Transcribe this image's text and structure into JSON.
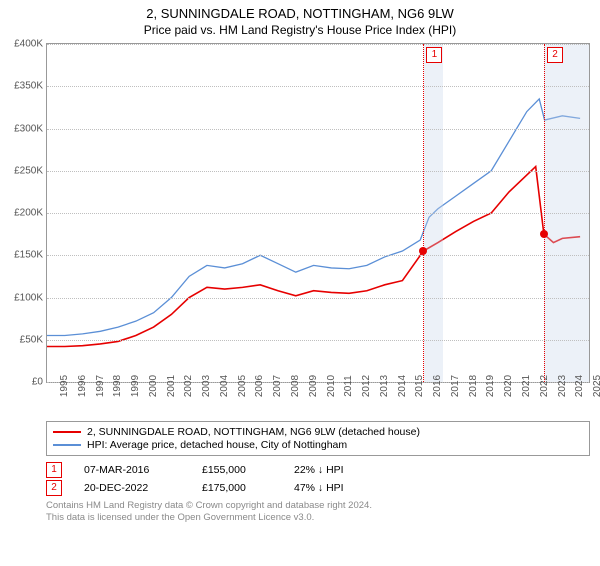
{
  "title": "2, SUNNINGDALE ROAD, NOTTINGHAM, NG6 9LW",
  "subtitle": "Price paid vs. HM Land Registry's House Price Index (HPI)",
  "chart": {
    "type": "line",
    "background_color": "#ffffff",
    "grid_color": "#bfbfbf",
    "border_color": "#999999",
    "x_years": [
      1995,
      1996,
      1997,
      1998,
      1999,
      2000,
      2001,
      2002,
      2003,
      2004,
      2005,
      2006,
      2007,
      2008,
      2009,
      2010,
      2011,
      2012,
      2013,
      2014,
      2015,
      2016,
      2017,
      2018,
      2019,
      2020,
      2021,
      2022,
      2023,
      2024,
      2025
    ],
    "xlim": [
      1995,
      2025.5
    ],
    "ylim": [
      0,
      400000
    ],
    "ytick_step": 50000,
    "y_tick_labels": [
      "£0",
      "£50K",
      "£100K",
      "£150K",
      "£200K",
      "£250K",
      "£300K",
      "£350K",
      "£400K"
    ],
    "label_fontsize": 10,
    "shaded_ranges": [
      {
        "from": 2016.2,
        "to": 2017.3
      },
      {
        "from": 2022.97,
        "to": 2025.5
      }
    ],
    "series": [
      {
        "key": "price_paid",
        "label": "2, SUNNINGDALE ROAD, NOTTINGHAM, NG6 9LW (detached house)",
        "color": "#e60000",
        "line_width": 1.6,
        "points": [
          [
            1995,
            42000
          ],
          [
            1996,
            42000
          ],
          [
            1997,
            43000
          ],
          [
            1998,
            45000
          ],
          [
            1999,
            48000
          ],
          [
            2000,
            55000
          ],
          [
            2001,
            65000
          ],
          [
            2002,
            80000
          ],
          [
            2003,
            100000
          ],
          [
            2004,
            112000
          ],
          [
            2005,
            110000
          ],
          [
            2006,
            112000
          ],
          [
            2007,
            115000
          ],
          [
            2008,
            108000
          ],
          [
            2009,
            102000
          ],
          [
            2010,
            108000
          ],
          [
            2011,
            106000
          ],
          [
            2012,
            105000
          ],
          [
            2013,
            108000
          ],
          [
            2014,
            115000
          ],
          [
            2015,
            120000
          ],
          [
            2016.18,
            155000
          ],
          [
            2017,
            165000
          ],
          [
            2018,
            178000
          ],
          [
            2019,
            190000
          ],
          [
            2020,
            200000
          ],
          [
            2021,
            225000
          ],
          [
            2022.5,
            255000
          ],
          [
            2022.96,
            175000
          ],
          [
            2023.5,
            165000
          ],
          [
            2024,
            170000
          ],
          [
            2025,
            172000
          ]
        ]
      },
      {
        "key": "hpi",
        "label": "HPI: Average price, detached house, City of Nottingham",
        "color": "#5b8fd6",
        "line_width": 1.3,
        "points": [
          [
            1995,
            55000
          ],
          [
            1996,
            55000
          ],
          [
            1997,
            57000
          ],
          [
            1998,
            60000
          ],
          [
            1999,
            65000
          ],
          [
            2000,
            72000
          ],
          [
            2001,
            82000
          ],
          [
            2002,
            100000
          ],
          [
            2003,
            125000
          ],
          [
            2004,
            138000
          ],
          [
            2005,
            135000
          ],
          [
            2006,
            140000
          ],
          [
            2007,
            150000
          ],
          [
            2008,
            140000
          ],
          [
            2009,
            130000
          ],
          [
            2010,
            138000
          ],
          [
            2011,
            135000
          ],
          [
            2012,
            134000
          ],
          [
            2013,
            138000
          ],
          [
            2014,
            148000
          ],
          [
            2015,
            155000
          ],
          [
            2016,
            168000
          ],
          [
            2016.5,
            195000
          ],
          [
            2017,
            205000
          ],
          [
            2018,
            220000
          ],
          [
            2019,
            235000
          ],
          [
            2020,
            250000
          ],
          [
            2021,
            285000
          ],
          [
            2022,
            320000
          ],
          [
            2022.7,
            335000
          ],
          [
            2023,
            310000
          ],
          [
            2024,
            315000
          ],
          [
            2025,
            312000
          ]
        ]
      }
    ],
    "markers": [
      {
        "n": 1,
        "x": 2016.18,
        "y": 155000,
        "color": "#e60000"
      },
      {
        "n": 2,
        "x": 2022.97,
        "y": 175000,
        "color": "#e60000"
      }
    ]
  },
  "legend": {
    "border_color": "#999999",
    "items": [
      {
        "color": "#e60000",
        "label": "2, SUNNINGDALE ROAD, NOTTINGHAM, NG6 9LW (detached house)"
      },
      {
        "color": "#5b8fd6",
        "label": "HPI: Average price, detached house, City of Nottingham"
      }
    ]
  },
  "sales": [
    {
      "n": 1,
      "date": "07-MAR-2016",
      "price": "£155,000",
      "diff": "22% ↓ HPI",
      "color": "#e60000"
    },
    {
      "n": 2,
      "date": "20-DEC-2022",
      "price": "£175,000",
      "diff": "47% ↓ HPI",
      "color": "#e60000"
    }
  ],
  "footnote_line1": "Contains HM Land Registry data © Crown copyright and database right 2024.",
  "footnote_line2": "This data is licensed under the Open Government Licence v3.0."
}
